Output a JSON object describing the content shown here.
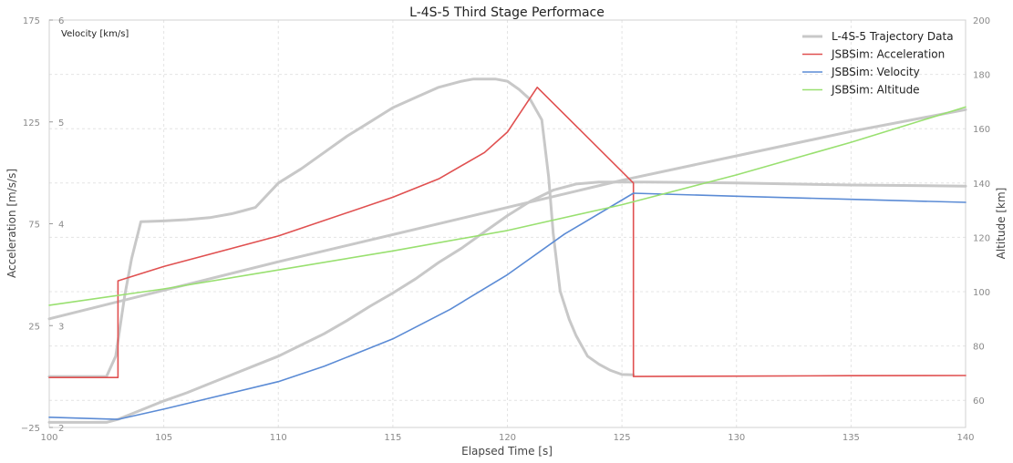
{
  "chart_data": {
    "type": "line",
    "title": "L-4S-5 Third Stage Performace",
    "xlabel": "Elapsed Time [s]",
    "ylabel": "Acceleration [m/s/s]",
    "ylabel_right": "Altitude [km]",
    "inner_axis_label": "Velocity [km/s]",
    "xlim": [
      100,
      140
    ],
    "ylim": [
      -25,
      175
    ],
    "ylim_velocity": [
      2,
      6
    ],
    "ylim_altitude": [
      50,
      200
    ],
    "x_ticks": [
      "100",
      "105",
      "110",
      "115",
      "120",
      "125",
      "130",
      "135",
      "140"
    ],
    "y_ticks": [
      "−25",
      "25",
      "75",
      "125",
      "175"
    ],
    "velocity_ticks": [
      "2",
      "3",
      "4",
      "5",
      "6"
    ],
    "altitude_ticks": [
      "60",
      "80",
      "100",
      "120",
      "140",
      "160",
      "180",
      "200"
    ],
    "grid": true,
    "legend_position": "top-right",
    "legend": [
      "L-4S-5 Trajectory Data",
      "JSBSim: Acceleration",
      "JSBSim: Velocity",
      "JSBSim: Altitude"
    ],
    "series": [
      {
        "name": "L-4S-5 Trajectory Data",
        "axis": "acceleration",
        "color": "#c8c8c8",
        "points": [
          [
            100,
            0
          ],
          [
            102.5,
            0
          ],
          [
            102.9,
            10
          ],
          [
            103.3,
            40
          ],
          [
            103.6,
            58
          ],
          [
            104,
            76
          ],
          [
            105,
            76.4
          ],
          [
            106,
            77
          ],
          [
            107,
            78
          ],
          [
            108,
            80
          ],
          [
            108.5,
            81.5
          ],
          [
            109,
            83
          ],
          [
            110,
            95
          ],
          [
            111,
            102
          ],
          [
            112,
            110
          ],
          [
            113,
            118
          ],
          [
            114,
            125
          ],
          [
            115,
            132
          ],
          [
            116,
            137
          ],
          [
            117,
            142
          ],
          [
            118,
            145
          ],
          [
            118.5,
            146
          ],
          [
            119,
            146
          ],
          [
            119.5,
            146
          ],
          [
            120,
            145
          ],
          [
            120.5,
            141
          ],
          [
            121,
            136
          ],
          [
            121.5,
            126
          ],
          [
            121.8,
            98
          ],
          [
            122,
            70
          ],
          [
            122.3,
            42
          ],
          [
            122.7,
            28
          ],
          [
            123,
            20
          ],
          [
            123.5,
            10
          ],
          [
            124,
            6
          ],
          [
            124.5,
            3
          ],
          [
            125,
            1
          ],
          [
            125.5,
            0.8
          ]
        ]
      },
      {
        "name": "",
        "axis": "velocity",
        "color": "#c8c8c8",
        "points": [
          [
            100,
            2.05
          ],
          [
            102.5,
            2.05
          ],
          [
            103,
            2.08
          ],
          [
            104,
            2.17
          ],
          [
            105,
            2.26
          ],
          [
            106,
            2.34
          ],
          [
            107,
            2.43
          ],
          [
            108,
            2.52
          ],
          [
            109,
            2.61
          ],
          [
            110,
            2.7
          ],
          [
            111,
            2.81
          ],
          [
            112,
            2.92
          ],
          [
            113,
            3.05
          ],
          [
            114,
            3.19
          ],
          [
            115,
            3.32
          ],
          [
            116,
            3.46
          ],
          [
            117,
            3.62
          ],
          [
            118,
            3.76
          ],
          [
            119,
            3.92
          ],
          [
            120,
            4.08
          ],
          [
            121,
            4.22
          ],
          [
            122,
            4.33
          ],
          [
            123,
            4.39
          ],
          [
            124,
            4.41
          ],
          [
            125,
            4.41
          ],
          [
            126,
            4.41
          ],
          [
            130,
            4.4
          ],
          [
            135,
            4.38
          ],
          [
            140,
            4.37
          ]
        ]
      },
      {
        "name": "",
        "axis": "altitude",
        "color": "#c8c8c8",
        "points": [
          [
            100,
            90
          ],
          [
            110,
            111
          ],
          [
            120,
            131
          ],
          [
            125,
            141
          ],
          [
            130,
            150
          ],
          [
            135,
            159
          ],
          [
            140,
            167
          ]
        ]
      },
      {
        "name": "JSBSim: Acceleration",
        "axis": "acceleration",
        "color": "#e05050",
        "points": [
          [
            100,
            -0.5
          ],
          [
            103,
            -0.5
          ],
          [
            103,
            47
          ],
          [
            105,
            54
          ],
          [
            110,
            69
          ],
          [
            115,
            88
          ],
          [
            117,
            97
          ],
          [
            119,
            110
          ],
          [
            120,
            120
          ],
          [
            121.3,
            142
          ],
          [
            125.5,
            95
          ],
          [
            125.5,
            0
          ],
          [
            130,
            0.2
          ],
          [
            135,
            0.4
          ],
          [
            140,
            0.5
          ]
        ]
      },
      {
        "name": "JSBSim: Velocity",
        "axis": "velocity",
        "color": "#5b8bd5",
        "points": [
          [
            100,
            2.1
          ],
          [
            103,
            2.08
          ],
          [
            105,
            2.18
          ],
          [
            110,
            2.45
          ],
          [
            112,
            2.6
          ],
          [
            115,
            2.87
          ],
          [
            117.5,
            3.16
          ],
          [
            120,
            3.5
          ],
          [
            122.5,
            3.9
          ],
          [
            125.5,
            4.3
          ],
          [
            130,
            4.27
          ],
          [
            135,
            4.24
          ],
          [
            140,
            4.21
          ]
        ]
      },
      {
        "name": "JSBSim: Altitude",
        "axis": "altitude",
        "color": "#99e070",
        "points": [
          [
            100,
            95
          ],
          [
            105,
            101
          ],
          [
            110,
            108
          ],
          [
            115,
            115
          ],
          [
            120,
            122.5
          ],
          [
            125,
            132
          ],
          [
            130,
            143
          ],
          [
            135,
            155
          ],
          [
            140,
            168
          ]
        ]
      }
    ]
  }
}
